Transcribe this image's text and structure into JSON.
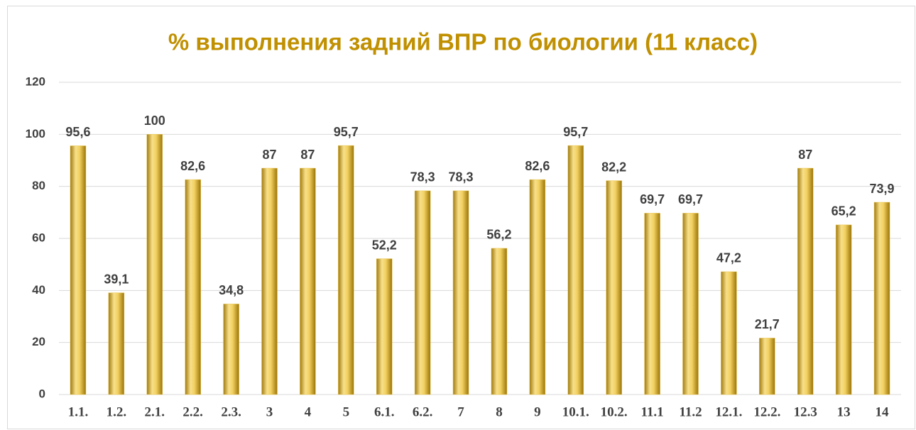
{
  "chart_data": {
    "type": "bar",
    "title": "% выполнения задний ВПР по биологии (11 класс)",
    "categories": [
      "1.1.",
      "1.2.",
      "2.1.",
      "2.2.",
      "2.3.",
      "3",
      "4",
      "5",
      "6.1.",
      "6.2.",
      "7",
      "8",
      "9",
      "10.1.",
      "10.2.",
      "11.1",
      "11.2",
      "12.1.",
      "12.2.",
      "12.3",
      "13",
      "14"
    ],
    "values": [
      95.6,
      39.1,
      100,
      82.6,
      34.8,
      87,
      87,
      95.7,
      52.2,
      78.3,
      78.3,
      56.2,
      82.6,
      95.7,
      82.2,
      69.7,
      69.7,
      47.2,
      21.7,
      87,
      65.2,
      73.9
    ],
    "value_labels": [
      "95,6",
      "39,1",
      "100",
      "82,6",
      "34,8",
      "87",
      "87",
      "95,7",
      "52,2",
      "78,3",
      "78,3",
      "56,2",
      "82,6",
      "95,7",
      "82,2",
      "69,7",
      "69,7",
      "47,2",
      "21,7",
      "87",
      "65,2",
      "73,9"
    ],
    "color": "#e8c44a",
    "ylim": [
      0,
      120
    ],
    "yticks": [
      0,
      20,
      40,
      60,
      80,
      100,
      120
    ],
    "grid": true
  }
}
